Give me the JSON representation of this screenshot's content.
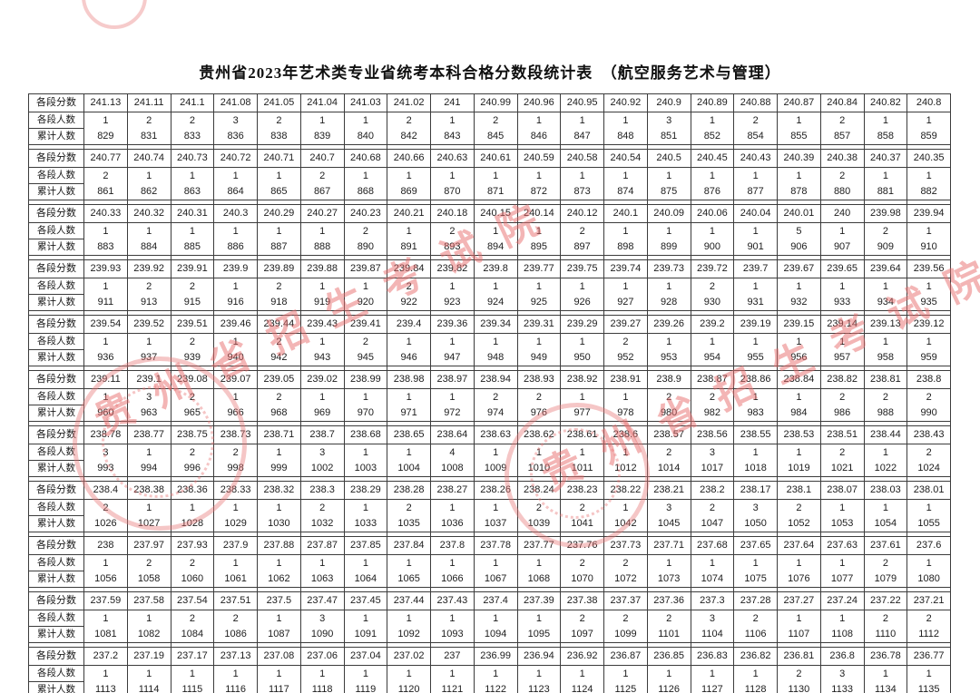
{
  "page": {
    "title": "贵州省2023年艺术类专业省统考本科合格分数段统计表　（航空服务艺术与管理）"
  },
  "table": {
    "row_labels": {
      "score": "各段分数",
      "count": "各段人数",
      "cumulative": "累计人数"
    }
  },
  "watermark": {
    "text": "贵州省招生考试院",
    "color": "#e76c6c"
  },
  "chart_data": {
    "type": "table",
    "title": "贵州省2023年艺术类专业省统考本科合格分数段统计表　（航空服务艺术与管理）",
    "row_labels": [
      "各段分数",
      "各段人数",
      "累计人数"
    ],
    "groups": [
      {
        "scores": [
          "241.13",
          "241.11",
          "241.1",
          "241.08",
          "241.05",
          "241.04",
          "241.03",
          "241.02",
          "241",
          "240.99",
          "240.96",
          "240.95",
          "240.92",
          "240.9",
          "240.89",
          "240.88",
          "240.87",
          "240.84",
          "240.82",
          "240.8"
        ],
        "counts": [
          1,
          2,
          2,
          3,
          2,
          1,
          1,
          2,
          1,
          2,
          1,
          1,
          1,
          3,
          1,
          2,
          1,
          2,
          1,
          1
        ],
        "cumulative": [
          829,
          831,
          833,
          836,
          838,
          839,
          840,
          842,
          843,
          845,
          846,
          847,
          848,
          851,
          852,
          854,
          855,
          857,
          858,
          859
        ]
      },
      {
        "scores": [
          "240.77",
          "240.74",
          "240.73",
          "240.72",
          "240.71",
          "240.7",
          "240.68",
          "240.66",
          "240.63",
          "240.61",
          "240.59",
          "240.58",
          "240.54",
          "240.5",
          "240.45",
          "240.43",
          "240.39",
          "240.38",
          "240.37",
          "240.35"
        ],
        "counts": [
          2,
          1,
          1,
          1,
          1,
          2,
          1,
          1,
          1,
          1,
          1,
          1,
          1,
          1,
          1,
          1,
          1,
          2,
          1,
          1
        ],
        "cumulative": [
          861,
          862,
          863,
          864,
          865,
          867,
          868,
          869,
          870,
          871,
          872,
          873,
          874,
          875,
          876,
          877,
          878,
          880,
          881,
          882
        ]
      },
      {
        "scores": [
          "240.33",
          "240.32",
          "240.31",
          "240.3",
          "240.29",
          "240.27",
          "240.23",
          "240.21",
          "240.18",
          "240.15",
          "240.14",
          "240.12",
          "240.1",
          "240.09",
          "240.06",
          "240.04",
          "240.01",
          "240",
          "239.98",
          "239.94"
        ],
        "counts": [
          1,
          1,
          1,
          1,
          1,
          1,
          2,
          1,
          2,
          1,
          1,
          2,
          1,
          1,
          1,
          1,
          5,
          1,
          2,
          1
        ],
        "cumulative": [
          883,
          884,
          885,
          886,
          887,
          888,
          890,
          891,
          893,
          894,
          895,
          897,
          898,
          899,
          900,
          901,
          906,
          907,
          909,
          910
        ]
      },
      {
        "scores": [
          "239.93",
          "239.92",
          "239.91",
          "239.9",
          "239.89",
          "239.88",
          "239.87",
          "239.84",
          "239.82",
          "239.8",
          "239.77",
          "239.75",
          "239.74",
          "239.73",
          "239.72",
          "239.7",
          "239.67",
          "239.65",
          "239.64",
          "239.56"
        ],
        "counts": [
          1,
          2,
          2,
          1,
          2,
          1,
          1,
          2,
          1,
          1,
          1,
          1,
          1,
          1,
          2,
          1,
          1,
          1,
          1,
          1
        ],
        "cumulative": [
          911,
          913,
          915,
          916,
          918,
          919,
          920,
          922,
          923,
          924,
          925,
          926,
          927,
          928,
          930,
          931,
          932,
          933,
          934,
          935
        ]
      },
      {
        "scores": [
          "239.54",
          "239.52",
          "239.51",
          "239.46",
          "239.44",
          "239.43",
          "239.41",
          "239.4",
          "239.36",
          "239.34",
          "239.31",
          "239.29",
          "239.27",
          "239.26",
          "239.2",
          "239.19",
          "239.15",
          "239.14",
          "239.13",
          "239.12"
        ],
        "counts": [
          1,
          1,
          2,
          1,
          2,
          1,
          2,
          1,
          1,
          1,
          1,
          1,
          2,
          1,
          1,
          1,
          1,
          1,
          1,
          1
        ],
        "cumulative": [
          936,
          937,
          939,
          940,
          942,
          943,
          945,
          946,
          947,
          948,
          949,
          950,
          952,
          953,
          954,
          955,
          956,
          957,
          958,
          959
        ]
      },
      {
        "scores": [
          "239.11",
          "239.1",
          "239.08",
          "239.07",
          "239.05",
          "239.02",
          "238.99",
          "238.98",
          "238.97",
          "238.94",
          "238.93",
          "238.92",
          "238.91",
          "238.9",
          "238.87",
          "238.86",
          "238.84",
          "238.82",
          "238.81",
          "238.8"
        ],
        "counts": [
          1,
          3,
          2,
          1,
          2,
          1,
          1,
          1,
          1,
          2,
          2,
          1,
          1,
          2,
          2,
          1,
          1,
          2,
          2,
          2
        ],
        "cumulative": [
          960,
          963,
          965,
          966,
          968,
          969,
          970,
          971,
          972,
          974,
          976,
          977,
          978,
          980,
          982,
          983,
          984,
          986,
          988,
          990
        ]
      },
      {
        "scores": [
          "238.78",
          "238.77",
          "238.75",
          "238.73",
          "238.71",
          "238.7",
          "238.68",
          "238.65",
          "238.64",
          "238.63",
          "238.62",
          "238.61",
          "238.6",
          "238.57",
          "238.56",
          "238.55",
          "238.53",
          "238.51",
          "238.44",
          "238.43"
        ],
        "counts": [
          3,
          1,
          2,
          2,
          1,
          3,
          1,
          1,
          4,
          1,
          1,
          1,
          1,
          2,
          3,
          1,
          1,
          2,
          1,
          2
        ],
        "cumulative": [
          993,
          994,
          996,
          998,
          999,
          1002,
          1003,
          1004,
          1008,
          1009,
          1010,
          1011,
          1012,
          1014,
          1017,
          1018,
          1019,
          1021,
          1022,
          1024
        ]
      },
      {
        "scores": [
          "238.4",
          "238.38",
          "238.36",
          "238.33",
          "238.32",
          "238.3",
          "238.29",
          "238.28",
          "238.27",
          "238.26",
          "238.24",
          "238.23",
          "238.22",
          "238.21",
          "238.2",
          "238.17",
          "238.1",
          "238.07",
          "238.03",
          "238.01"
        ],
        "counts": [
          2,
          1,
          1,
          1,
          1,
          2,
          1,
          2,
          1,
          1,
          2,
          2,
          1,
          3,
          2,
          3,
          2,
          1,
          1,
          1
        ],
        "cumulative": [
          1026,
          1027,
          1028,
          1029,
          1030,
          1032,
          1033,
          1035,
          1036,
          1037,
          1039,
          1041,
          1042,
          1045,
          1047,
          1050,
          1052,
          1053,
          1054,
          1055
        ]
      },
      {
        "scores": [
          "238",
          "237.97",
          "237.93",
          "237.9",
          "237.88",
          "237.87",
          "237.85",
          "237.84",
          "237.8",
          "237.78",
          "237.77",
          "237.76",
          "237.73",
          "237.71",
          "237.68",
          "237.65",
          "237.64",
          "237.63",
          "237.61",
          "237.6"
        ],
        "counts": [
          1,
          2,
          2,
          1,
          1,
          1,
          1,
          1,
          1,
          1,
          1,
          2,
          2,
          1,
          1,
          1,
          1,
          1,
          2,
          1
        ],
        "cumulative": [
          1056,
          1058,
          1060,
          1061,
          1062,
          1063,
          1064,
          1065,
          1066,
          1067,
          1068,
          1070,
          1072,
          1073,
          1074,
          1075,
          1076,
          1077,
          1079,
          1080
        ]
      },
      {
        "scores": [
          "237.59",
          "237.58",
          "237.54",
          "237.51",
          "237.5",
          "237.47",
          "237.45",
          "237.44",
          "237.43",
          "237.4",
          "237.39",
          "237.38",
          "237.37",
          "237.36",
          "237.3",
          "237.28",
          "237.27",
          "237.24",
          "237.22",
          "237.21"
        ],
        "counts": [
          1,
          1,
          2,
          2,
          1,
          3,
          1,
          1,
          1,
          1,
          1,
          2,
          2,
          2,
          3,
          2,
          1,
          1,
          2,
          2
        ],
        "cumulative": [
          1081,
          1082,
          1084,
          1086,
          1087,
          1090,
          1091,
          1092,
          1093,
          1094,
          1095,
          1097,
          1099,
          1101,
          1104,
          1106,
          1107,
          1108,
          1110,
          1112
        ]
      },
      {
        "scores": [
          "237.2",
          "237.19",
          "237.17",
          "237.13",
          "237.08",
          "237.06",
          "237.04",
          "237.02",
          "237",
          "236.99",
          "236.94",
          "236.92",
          "236.87",
          "236.85",
          "236.83",
          "236.82",
          "236.81",
          "236.8",
          "236.78",
          "236.77"
        ],
        "counts": [
          1,
          1,
          1,
          1,
          1,
          1,
          1,
          1,
          1,
          1,
          1,
          1,
          1,
          1,
          1,
          1,
          2,
          3,
          1,
          1
        ],
        "cumulative": [
          1113,
          1114,
          1115,
          1116,
          1117,
          1118,
          1119,
          1120,
          1121,
          1122,
          1123,
          1124,
          1125,
          1126,
          1127,
          1128,
          1130,
          1133,
          1134,
          1135
        ]
      }
    ]
  }
}
